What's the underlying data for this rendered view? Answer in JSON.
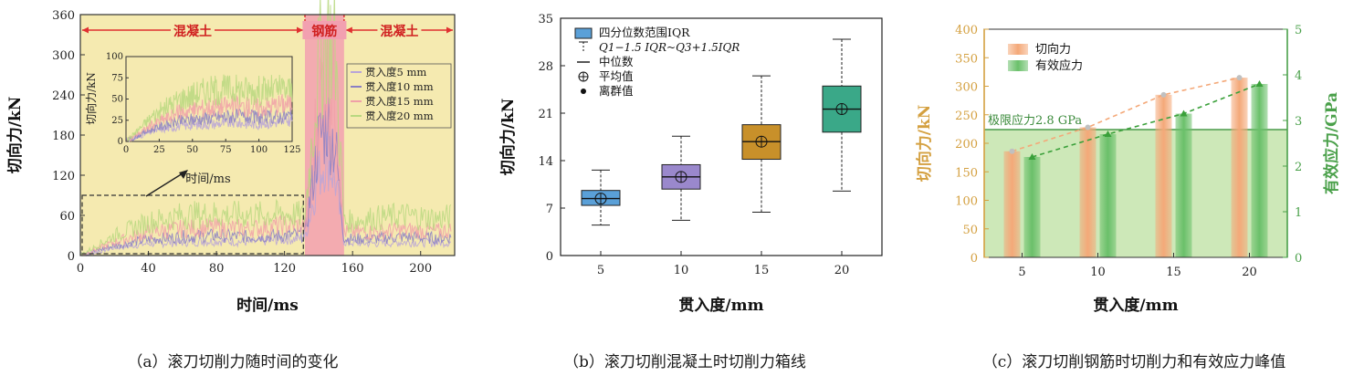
{
  "chart_data": [
    {
      "type": "line",
      "caption": "（a）滚刀切削力随时间的变化",
      "xlabel": "时间/ms",
      "ylabel": "切向力/kN",
      "xlim": [
        0,
        220
      ],
      "ylim": [
        0,
        360
      ],
      "xticks": [
        0,
        40,
        80,
        120,
        160,
        200
      ],
      "yticks": [
        0,
        60,
        120,
        180,
        240,
        300,
        360
      ],
      "region_labels": [
        "混凝土",
        "钢筋",
        "混凝土"
      ],
      "regions": [
        [
          0,
          132
        ],
        [
          132,
          155
        ],
        [
          155,
          220
        ]
      ],
      "inset": {
        "xlabel": "时间/ms",
        "ylabel": "切向力/kN",
        "xlim": [
          0,
          125
        ],
        "ylim": [
          0,
          100
        ],
        "xticks": [
          0,
          25,
          50,
          75,
          100,
          125
        ],
        "yticks": [
          0,
          25,
          50,
          75,
          100
        ]
      },
      "series": [
        {
          "name": "贯入度5 mm",
          "color": "#b8a4d8",
          "x": [
            0,
            20,
            40,
            60,
            80,
            100,
            120,
            132,
            140,
            145,
            150,
            155,
            170,
            190,
            210,
            218
          ],
          "y": [
            0,
            12,
            18,
            20,
            22,
            20,
            24,
            26,
            120,
            150,
            110,
            20,
            18,
            20,
            19,
            20
          ]
        },
        {
          "name": "贯入度10 mm",
          "color": "#8a7fc4",
          "x": [
            0,
            20,
            40,
            60,
            80,
            100,
            120,
            132,
            140,
            145,
            150,
            155,
            170,
            190,
            210,
            218
          ],
          "y": [
            0,
            15,
            24,
            28,
            30,
            28,
            30,
            32,
            170,
            200,
            160,
            25,
            25,
            28,
            26,
            27
          ]
        },
        {
          "name": "贯入度15 mm",
          "color": "#f0a0a8",
          "x": [
            0,
            20,
            40,
            60,
            80,
            100,
            120,
            132,
            140,
            145,
            150,
            155,
            170,
            190,
            210,
            218
          ],
          "y": [
            0,
            20,
            35,
            40,
            42,
            40,
            45,
            45,
            230,
            280,
            240,
            35,
            35,
            38,
            36,
            38
          ]
        },
        {
          "name": "贯入度20 mm",
          "color": "#b8d880",
          "x": [
            0,
            20,
            40,
            60,
            80,
            100,
            120,
            132,
            140,
            145,
            150,
            155,
            170,
            190,
            210,
            218
          ],
          "y": [
            0,
            30,
            50,
            60,
            62,
            60,
            62,
            60,
            280,
            340,
            300,
            50,
            55,
            60,
            55,
            58
          ]
        }
      ],
      "annotation": "时间/ms"
    },
    {
      "type": "box",
      "caption": "（b）滚刀切削混凝土时切削力箱线",
      "xlabel": "贯入度/mm",
      "ylabel": "切向力/kN",
      "ylim": [
        0,
        35
      ],
      "yticks": [
        0,
        7,
        14,
        21,
        28,
        35
      ],
      "categories": [
        "5",
        "10",
        "15",
        "20"
      ],
      "legend": [
        "四分位数范围IQR",
        "Q1−1.5 IQR~Q3+1.5IQR",
        "中位数",
        "平均值",
        "离群值"
      ],
      "boxes": [
        {
          "category": "5",
          "whisker_low": 4.5,
          "q1": 7.4,
          "median": 8.4,
          "q3": 9.6,
          "whisker_high": 12.6,
          "mean": 8.4,
          "color": "#5aa0d8"
        },
        {
          "category": "10",
          "whisker_low": 5.2,
          "q1": 9.8,
          "median": 11.6,
          "q3": 13.4,
          "whisker_high": 17.6,
          "mean": 11.6,
          "color": "#9a88cc"
        },
        {
          "category": "15",
          "whisker_low": 6.4,
          "q1": 14.2,
          "median": 16.8,
          "q3": 19.3,
          "whisker_high": 26.5,
          "mean": 16.8,
          "color": "#c8902a"
        },
        {
          "category": "20",
          "whisker_low": 9.5,
          "q1": 18.2,
          "median": 21.6,
          "q3": 25.0,
          "whisker_high": 31.9,
          "mean": 21.6,
          "color": "#3aa888"
        }
      ]
    },
    {
      "type": "bar",
      "caption": "（c）滚刀切削钢筋时切削力和有效应力峰值",
      "xlabel": "贯入度/mm",
      "ylabel": "切向力/kN",
      "y2label": "有效应力/GPa",
      "ylim": [
        0,
        400
      ],
      "yticks": [
        0,
        50,
        100,
        150,
        200,
        250,
        300,
        350,
        400
      ],
      "y2lim": [
        0,
        5
      ],
      "y2ticks": [
        0,
        1,
        2,
        3,
        4,
        5
      ],
      "categories": [
        "5",
        "10",
        "15",
        "20"
      ],
      "series": [
        {
          "name": "切向力",
          "axis": "left",
          "color": "#f4a878",
          "values": [
            186,
            228,
            285,
            315
          ]
        },
        {
          "name": "有效应力",
          "axis": "right",
          "color": "#6ac06a",
          "values": [
            2.2,
            2.7,
            3.15,
            3.8
          ]
        }
      ],
      "threshold": {
        "label": "极限应力2.8 GPa",
        "value": 2.8,
        "axis": "right"
      },
      "left_axis_color": "#d4a040",
      "right_axis_color": "#4aa04a"
    }
  ]
}
